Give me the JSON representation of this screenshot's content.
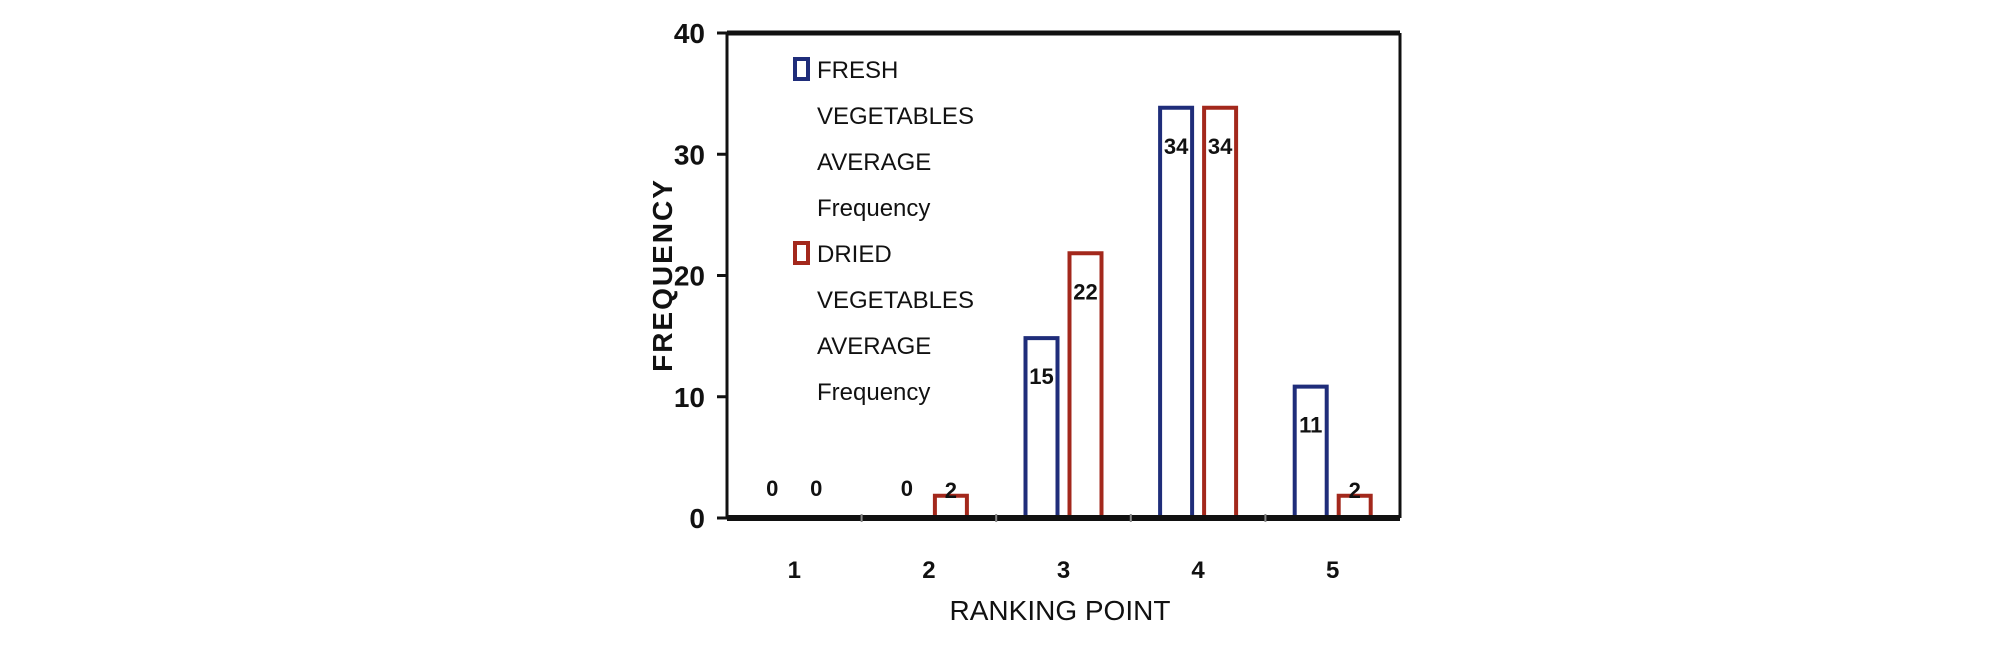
{
  "chart_data": {
    "type": "bar",
    "xlabel": "RANKING POINT",
    "ylabel": "FREQUENCY",
    "categories": [
      "1",
      "2",
      "3",
      "4",
      "5"
    ],
    "ylim": [
      0,
      40
    ],
    "yticks": [
      0,
      10,
      20,
      30,
      40
    ],
    "grid": false,
    "legend_position": "top-left",
    "series": [
      {
        "name": "FRESH VEGETABLES AVERAGE Frequency",
        "legend_lines": [
          "FRESH",
          "VEGETABLES",
          "AVERAGE",
          "Frequency"
        ],
        "color": "#1f2d7a",
        "values": [
          0,
          0,
          15,
          34,
          11
        ]
      },
      {
        "name": "DRIED VEGETABLES AVERAGE Frequency",
        "legend_lines": [
          "DRIED",
          "VEGETABLES",
          "AVERAGE",
          "Frequency"
        ],
        "color": "#a3281c",
        "values": [
          0,
          2,
          22,
          34,
          2
        ]
      }
    ]
  }
}
